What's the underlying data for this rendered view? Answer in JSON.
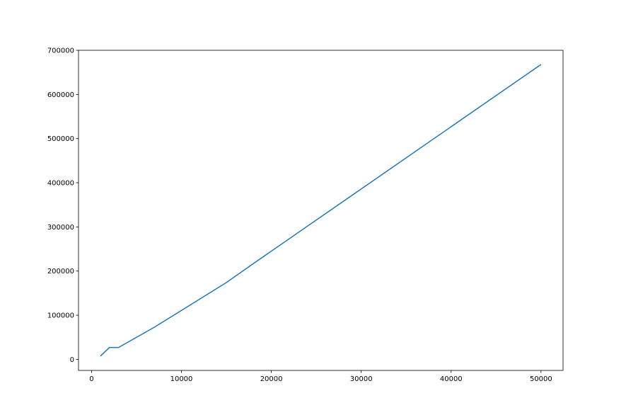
{
  "chart_data": {
    "type": "line",
    "title": "",
    "xlabel": "",
    "ylabel": "",
    "xlim": [
      -1450,
      52450
    ],
    "ylim": [
      -25000,
      700000
    ],
    "xticks": [
      0,
      10000,
      20000,
      30000,
      40000,
      50000
    ],
    "yticks": [
      0,
      100000,
      200000,
      300000,
      400000,
      500000,
      600000,
      700000
    ],
    "grid": false,
    "series": [
      {
        "color": "#1f77b4",
        "x": [
          1000,
          2000,
          3000,
          7000,
          15000,
          18000,
          30000,
          50000
        ],
        "y": [
          7500,
          27000,
          27000,
          73000,
          174000,
          217000,
          386000,
          668000
        ]
      }
    ]
  }
}
